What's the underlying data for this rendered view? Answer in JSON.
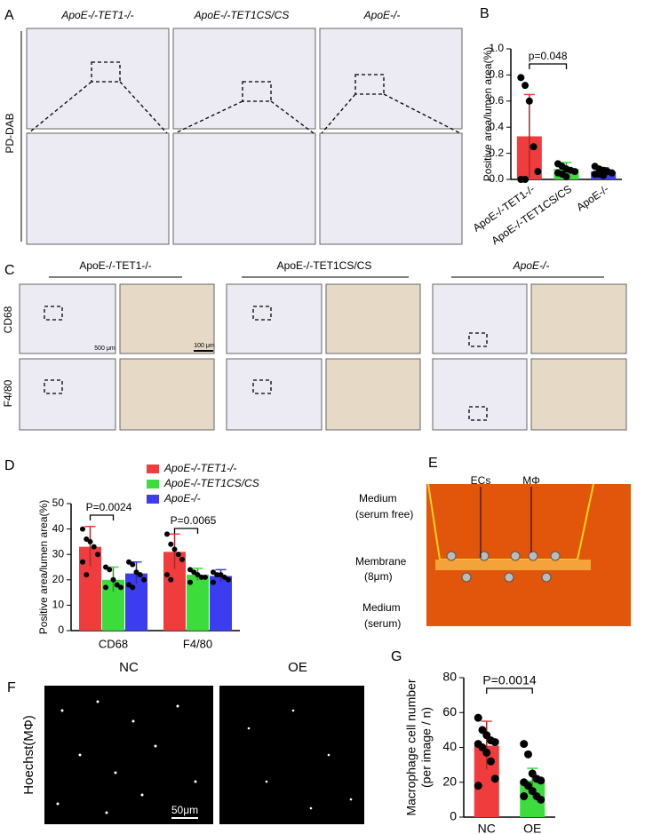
{
  "figure": {
    "panel_letters": [
      "A",
      "B",
      "C",
      "D",
      "E",
      "F",
      "G"
    ],
    "panel_a": {
      "columns": [
        "ApoE-/-TET1-/-",
        "ApoE-/-TET1CS/CS",
        "ApoE-/-"
      ],
      "row_label": "PD-DAB"
    },
    "panel_c": {
      "columns": [
        "ApoE-/-TET1-/-",
        "ApoE-/-TET1CS/CS",
        "ApoE-/-"
      ],
      "rows": [
        "CD68",
        "F4/80"
      ],
      "scale_bars": [
        "500 μm",
        "100 μm"
      ]
    },
    "panel_e": {
      "labels": [
        "ECs",
        "MΦ",
        "Medium",
        "(serum free)",
        "Membrane",
        "(8μm)",
        "Medium",
        "(serum)"
      ]
    },
    "panel_f": {
      "columns": [
        "NC",
        "OE"
      ],
      "row_label": "Hoechst(MΦ)",
      "scale_bar": "50μm"
    }
  },
  "chart_data": [
    {
      "type": "bar",
      "ylabel": "Positive area/lumen area(%)",
      "categories": [
        "ApoE-/-TET1-/-",
        "ApoE-/-TET1CS/CS",
        "ApoE-/-"
      ],
      "values": [
        0.33,
        0.08,
        0.06
      ],
      "errors": [
        0.32,
        0.05,
        0.03
      ],
      "colors": [
        "#f03c3c",
        "#3ddc3d",
        "#3c3cf0"
      ],
      "points": [
        [
          0.78,
          0.72,
          0.6,
          0.25,
          0.06,
          0,
          0
        ],
        [
          0.12,
          0.1,
          0.08,
          0.07,
          0.06,
          0.05,
          0.04,
          0.02
        ],
        [
          0.1,
          0.08,
          0.07,
          0.06,
          0.05,
          0.04,
          0.04,
          0.03
        ]
      ],
      "ylim": [
        0,
        1
      ],
      "yticks": [
        {
          "value": 0,
          "label": "0.0"
        },
        0.2,
        0.4,
        0.6,
        0.8,
        {
          "value": 1,
          "label": "1.0"
        }
      ],
      "annotations": [
        "p=0.048"
      ]
    },
    {
      "type": "grouped-bar",
      "ylabel": "Positive area/lumen area(%)",
      "categories": [
        "CD68",
        "F4/80"
      ],
      "series": [
        {
          "name": "ApoE-/-TET1-/-",
          "color": "#f03c3c",
          "values": [
            33,
            31
          ],
          "errors": [
            8,
            7
          ],
          "points": [
            [
              40,
              36,
              35,
              33,
              30,
              27,
              22
            ],
            [
              38,
              34,
              32,
              30,
              28,
              22,
              20
            ]
          ]
        },
        {
          "name": "ApoE-/-TET1CS/CS",
          "color": "#3ddc3d",
          "values": [
            20,
            22
          ],
          "errors": [
            5,
            2.5
          ],
          "points": [
            [
              25,
              24,
              20,
              18,
              17,
              17
            ],
            [
              24,
              23,
              22,
              21,
              21,
              19
            ]
          ]
        },
        {
          "name": "ApoE-/-",
          "color": "#3c3cf0",
          "values": [
            22.5,
            21.5
          ],
          "errors": [
            4.5,
            2.5
          ],
          "points": [
            [
              27,
              26,
              23,
              22,
              20,
              18,
              17
            ],
            [
              23,
              22,
              22,
              21,
              20,
              19
            ]
          ]
        }
      ],
      "ylim": [
        0,
        50
      ],
      "yticks": [
        0,
        10,
        20,
        30,
        40,
        50
      ],
      "annotations": [
        "P=0.0024",
        "P=0.0065"
      ]
    },
    {
      "type": "bar",
      "ylabel": [
        "Macrophage cell number",
        "(per image / n)"
      ],
      "categories": [
        "NC",
        "OE"
      ],
      "values": [
        41,
        21
      ],
      "errors": [
        14,
        7
      ],
      "colors": [
        "#f03c3c",
        "#3ddc3d"
      ],
      "points": [
        [
          57,
          50,
          47,
          44,
          43,
          42,
          40,
          37,
          32,
          22,
          18
        ],
        [
          42,
          36,
          25,
          22,
          21,
          20,
          18,
          15,
          12,
          10,
          12
        ]
      ],
      "ylim": [
        0,
        80
      ],
      "yticks": [
        0,
        20,
        40,
        60,
        80
      ],
      "annotations": [
        "P=0.0014"
      ]
    }
  ]
}
